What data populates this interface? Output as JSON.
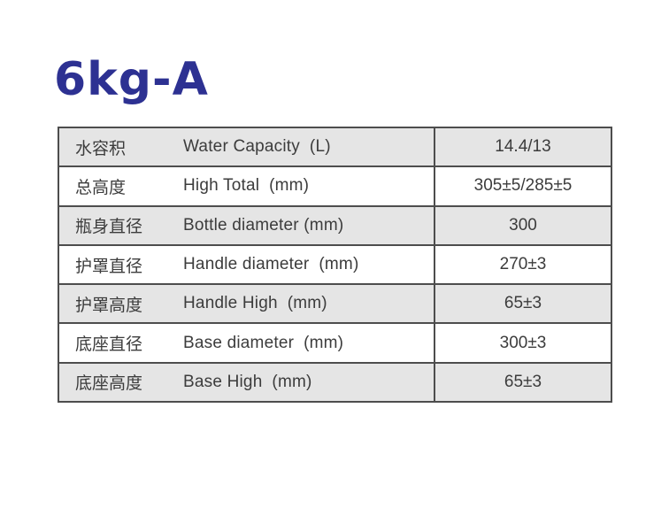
{
  "page": {
    "title": "6kg-A"
  },
  "colors": {
    "title_blue": "#2d3192",
    "border_grey": "#4d4d4d",
    "row_grey": "#e5e5e5",
    "row_white": "#ffffff",
    "text_grey": "#3c3c3c"
  },
  "table": {
    "rows": [
      {
        "cn": "水容积",
        "en": "Water Capacity  (L)",
        "value": "14.4/13"
      },
      {
        "cn": "总高度",
        "en": "High Total  (mm)",
        "value": "305±5/285±5"
      },
      {
        "cn": "瓶身直径",
        "en": "Bottle diameter (mm)",
        "value": "300"
      },
      {
        "cn": "护罩直径",
        "en": "Handle diameter  (mm)",
        "value": "270±3"
      },
      {
        "cn": "护罩高度",
        "en": "Handle High  (mm)",
        "value": "65±3"
      },
      {
        "cn": "底座直径",
        "en": "Base diameter  (mm)",
        "value": "300±3"
      },
      {
        "cn": "底座高度",
        "en": "Base High  (mm)",
        "value": "65±3"
      }
    ]
  }
}
